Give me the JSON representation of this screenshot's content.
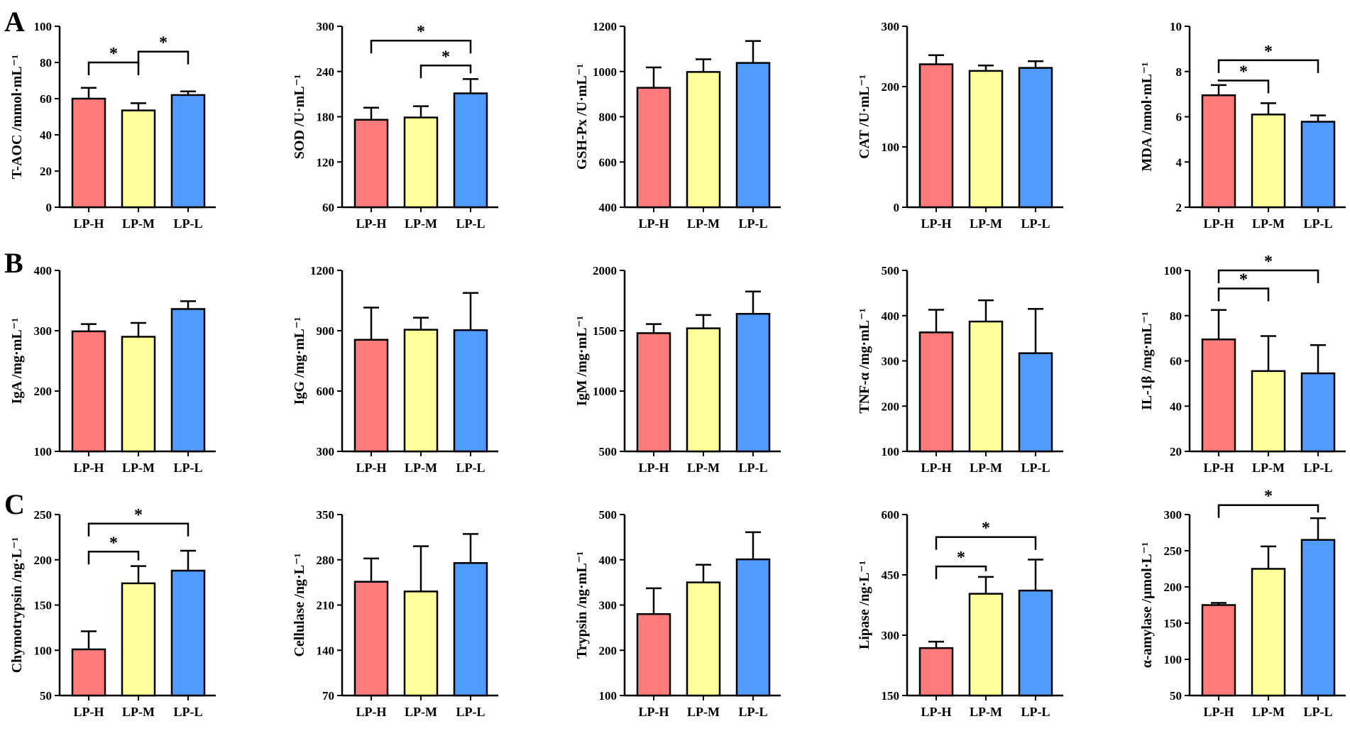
{
  "figure": {
    "groups": [
      "LP-H",
      "LP-M",
      "LP-L"
    ],
    "colors": {
      "LP-H": "#FF7B7B",
      "LP-M": "#FFFF99",
      "LP-L": "#4F9BFF"
    },
    "panel_labels": [
      "A",
      "B",
      "C"
    ]
  },
  "chart_data": [
    {
      "id": "tac",
      "type": "bar",
      "panel": "A",
      "title": "",
      "ylabel": "T-AOC /mmol·mL⁻¹",
      "categories": [
        "LP-H",
        "LP-M",
        "LP-L"
      ],
      "values": [
        60,
        53.5,
        62
      ],
      "errors": [
        6,
        4,
        2
      ],
      "ylim": [
        0,
        100
      ],
      "yticks": [
        0,
        20,
        40,
        60,
        80,
        100
      ],
      "ytick_labels": [
        "0",
        "20",
        "40",
        "60",
        "80",
        "100"
      ],
      "significance": [
        {
          "from": "LP-H",
          "to": "LP-M",
          "label": "*",
          "level": 80
        },
        {
          "from": "LP-M",
          "to": "LP-L",
          "label": "*",
          "level": 86
        }
      ]
    },
    {
      "id": "sod",
      "type": "bar",
      "panel": "A",
      "title": "",
      "ylabel": "SOD /U·mL⁻¹",
      "categories": [
        "LP-H",
        "LP-M",
        "LP-L"
      ],
      "values": [
        176,
        179,
        211
      ],
      "errors": [
        16,
        15,
        19
      ],
      "ylim": [
        60,
        300
      ],
      "yticks": [
        60,
        120,
        180,
        240,
        300
      ],
      "ytick_labels": [
        "60",
        "120",
        "180",
        "240",
        "300"
      ],
      "significance": [
        {
          "from": "LP-M",
          "to": "LP-L",
          "label": "*",
          "level": 248
        },
        {
          "from": "LP-H",
          "to": "LP-L",
          "label": "*",
          "level": 281
        }
      ]
    },
    {
      "id": "gsh",
      "type": "bar",
      "panel": "A",
      "title": "",
      "ylabel": "GSH-Px /U·mL⁻¹",
      "categories": [
        "LP-H",
        "LP-M",
        "LP-L"
      ],
      "values": [
        928,
        998,
        1038
      ],
      "errors": [
        90,
        56,
        97
      ],
      "ylim": [
        400,
        1200
      ],
      "yticks": [
        400,
        600,
        800,
        1000,
        1200
      ],
      "ytick_labels": [
        "400",
        "600",
        "800",
        "1000",
        "1200"
      ],
      "significance": []
    },
    {
      "id": "cat",
      "type": "bar",
      "panel": "A",
      "title": "",
      "ylabel": "CAT /U·mL⁻¹",
      "categories": [
        "LP-H",
        "LP-M",
        "LP-L"
      ],
      "values": [
        237,
        226,
        231
      ],
      "errors": [
        15,
        9,
        11
      ],
      "ylim": [
        0,
        300
      ],
      "yticks": [
        0,
        100,
        200,
        300
      ],
      "ytick_labels": [
        "0",
        "100",
        "200",
        "300"
      ],
      "significance": []
    },
    {
      "id": "mda",
      "type": "bar",
      "panel": "A",
      "title": "",
      "ylabel": "MDA /nmol·mL⁻¹",
      "categories": [
        "LP-H",
        "LP-M",
        "LP-L"
      ],
      "values": [
        6.95,
        6.1,
        5.78
      ],
      "errors": [
        0.45,
        0.5,
        0.28
      ],
      "ylim": [
        2,
        10
      ],
      "yticks": [
        2,
        4,
        6,
        8,
        10
      ],
      "ytick_labels": [
        "2",
        "4",
        "6",
        "8",
        "10"
      ],
      "significance": [
        {
          "from": "LP-H",
          "to": "LP-M",
          "label": "*",
          "level": 7.6
        },
        {
          "from": "LP-H",
          "to": "LP-L",
          "label": "*",
          "level": 8.5
        }
      ]
    },
    {
      "id": "iga",
      "type": "bar",
      "panel": "B",
      "title": "",
      "ylabel": "IgA /mg·mL⁻¹",
      "categories": [
        "LP-H",
        "LP-M",
        "LP-L"
      ],
      "values": [
        299,
        290,
        336
      ],
      "errors": [
        12,
        23,
        13
      ],
      "ylim": [
        100,
        400
      ],
      "yticks": [
        100,
        200,
        300,
        400
      ],
      "ytick_labels": [
        "100",
        "200",
        "300",
        "400"
      ],
      "significance": []
    },
    {
      "id": "igg",
      "type": "bar",
      "panel": "B",
      "title": "",
      "ylabel": "IgG /mg·mL⁻¹",
      "categories": [
        "LP-H",
        "LP-M",
        "LP-L"
      ],
      "values": [
        855,
        905,
        903
      ],
      "errors": [
        160,
        60,
        185
      ],
      "ylim": [
        300,
        1200
      ],
      "yticks": [
        300,
        600,
        900,
        1200
      ],
      "ytick_labels": [
        "300",
        "600",
        "900",
        "1200"
      ],
      "significance": []
    },
    {
      "id": "igm",
      "type": "bar",
      "panel": "B",
      "title": "",
      "ylabel": "IgM /mg·mL⁻¹",
      "categories": [
        "LP-H",
        "LP-M",
        "LP-L"
      ],
      "values": [
        1480,
        1520,
        1640
      ],
      "errors": [
        75,
        110,
        185
      ],
      "ylim": [
        500,
        2000
      ],
      "yticks": [
        500,
        1000,
        1500,
        2000
      ],
      "ytick_labels": [
        "500",
        "1000",
        "1500",
        "2000"
      ],
      "significance": []
    },
    {
      "id": "tnf",
      "type": "bar",
      "panel": "B",
      "title": "",
      "ylabel": "TNF-α /mg·mL⁻¹",
      "categories": [
        "LP-H",
        "LP-M",
        "LP-L"
      ],
      "values": [
        363,
        387,
        317
      ],
      "errors": [
        50,
        47,
        98
      ],
      "ylim": [
        100,
        500
      ],
      "yticks": [
        100,
        200,
        300,
        400,
        500
      ],
      "ytick_labels": [
        "100",
        "200",
        "300",
        "400",
        "500"
      ],
      "significance": []
    },
    {
      "id": "il1",
      "type": "bar",
      "panel": "B",
      "title": "",
      "ylabel": "IL-1β /mg·mL⁻¹",
      "categories": [
        "LP-H",
        "LP-M",
        "LP-L"
      ],
      "values": [
        69.5,
        55.5,
        54.5
      ],
      "errors": [
        13,
        15.5,
        12.5
      ],
      "ylim": [
        20,
        100
      ],
      "yticks": [
        20,
        40,
        60,
        80,
        100
      ],
      "ytick_labels": [
        "20",
        "40",
        "60",
        "80",
        "100"
      ],
      "significance": [
        {
          "from": "LP-H",
          "to": "LP-M",
          "label": "*",
          "level": 92
        },
        {
          "from": "LP-H",
          "to": "LP-L",
          "label": "*",
          "level": 100
        }
      ]
    },
    {
      "id": "chy",
      "type": "bar",
      "panel": "C",
      "title": "",
      "ylabel": "Chymotrypsin /ng·L⁻¹",
      "categories": [
        "LP-H",
        "LP-M",
        "LP-L"
      ],
      "values": [
        101,
        174,
        188
      ],
      "errors": [
        20,
        19,
        22
      ],
      "ylim": [
        50,
        250
      ],
      "yticks": [
        50,
        100,
        150,
        200,
        250
      ],
      "ytick_labels": [
        "50",
        "100",
        "150",
        "200",
        "250"
      ],
      "significance": [
        {
          "from": "LP-H",
          "to": "LP-M",
          "label": "*",
          "level": 209
        },
        {
          "from": "LP-H",
          "to": "LP-L",
          "label": "*",
          "level": 240
        }
      ]
    },
    {
      "id": "cel",
      "type": "bar",
      "panel": "C",
      "title": "",
      "ylabel": "Cellulase /ng·L⁻¹",
      "categories": [
        "LP-H",
        "LP-M",
        "LP-L"
      ],
      "values": [
        246,
        231,
        275
      ],
      "errors": [
        36,
        70,
        45
      ],
      "ylim": [
        70,
        350
      ],
      "yticks": [
        70,
        140,
        210,
        280,
        350
      ],
      "ytick_labels": [
        "70",
        "140",
        "210",
        "280",
        "350"
      ],
      "significance": []
    },
    {
      "id": "try",
      "type": "bar",
      "panel": "C",
      "title": "",
      "ylabel": "Trypsin /ng·mL⁻¹",
      "categories": [
        "LP-H",
        "LP-M",
        "LP-L"
      ],
      "values": [
        280,
        350,
        401
      ],
      "errors": [
        57,
        39,
        60
      ],
      "ylim": [
        100,
        500
      ],
      "yticks": [
        100,
        200,
        300,
        400,
        500
      ],
      "ytick_labels": [
        "100",
        "200",
        "300",
        "400",
        "500"
      ],
      "significance": []
    },
    {
      "id": "lip",
      "type": "bar",
      "panel": "C",
      "title": "",
      "ylabel": "Lipase /ng·L⁻¹",
      "categories": [
        "LP-H",
        "LP-M",
        "LP-L"
      ],
      "values": [
        268,
        403,
        411
      ],
      "errors": [
        16,
        42,
        77
      ],
      "ylim": [
        150,
        600
      ],
      "yticks": [
        150,
        300,
        450,
        600
      ],
      "ytick_labels": [
        "150",
        "300",
        "450",
        "600"
      ],
      "significance": [
        {
          "from": "LP-H",
          "to": "LP-M",
          "label": "*",
          "level": 471
        },
        {
          "from": "LP-H",
          "to": "LP-L",
          "label": "*",
          "level": 544
        }
      ]
    },
    {
      "id": "amy",
      "type": "bar",
      "panel": "C",
      "title": "",
      "ylabel": "α-amylase /μmol·L⁻¹",
      "categories": [
        "LP-H",
        "LP-M",
        "LP-L"
      ],
      "values": [
        175,
        225,
        265
      ],
      "errors": [
        3,
        31,
        30
      ],
      "ylim": [
        50,
        300
      ],
      "yticks": [
        50,
        100,
        150,
        200,
        250,
        300
      ],
      "ytick_labels": [
        "50",
        "100",
        "150",
        "200",
        "250",
        "300"
      ],
      "significance": [
        {
          "from": "LP-H",
          "to": "LP-L",
          "label": "*",
          "level": 313
        }
      ]
    }
  ]
}
